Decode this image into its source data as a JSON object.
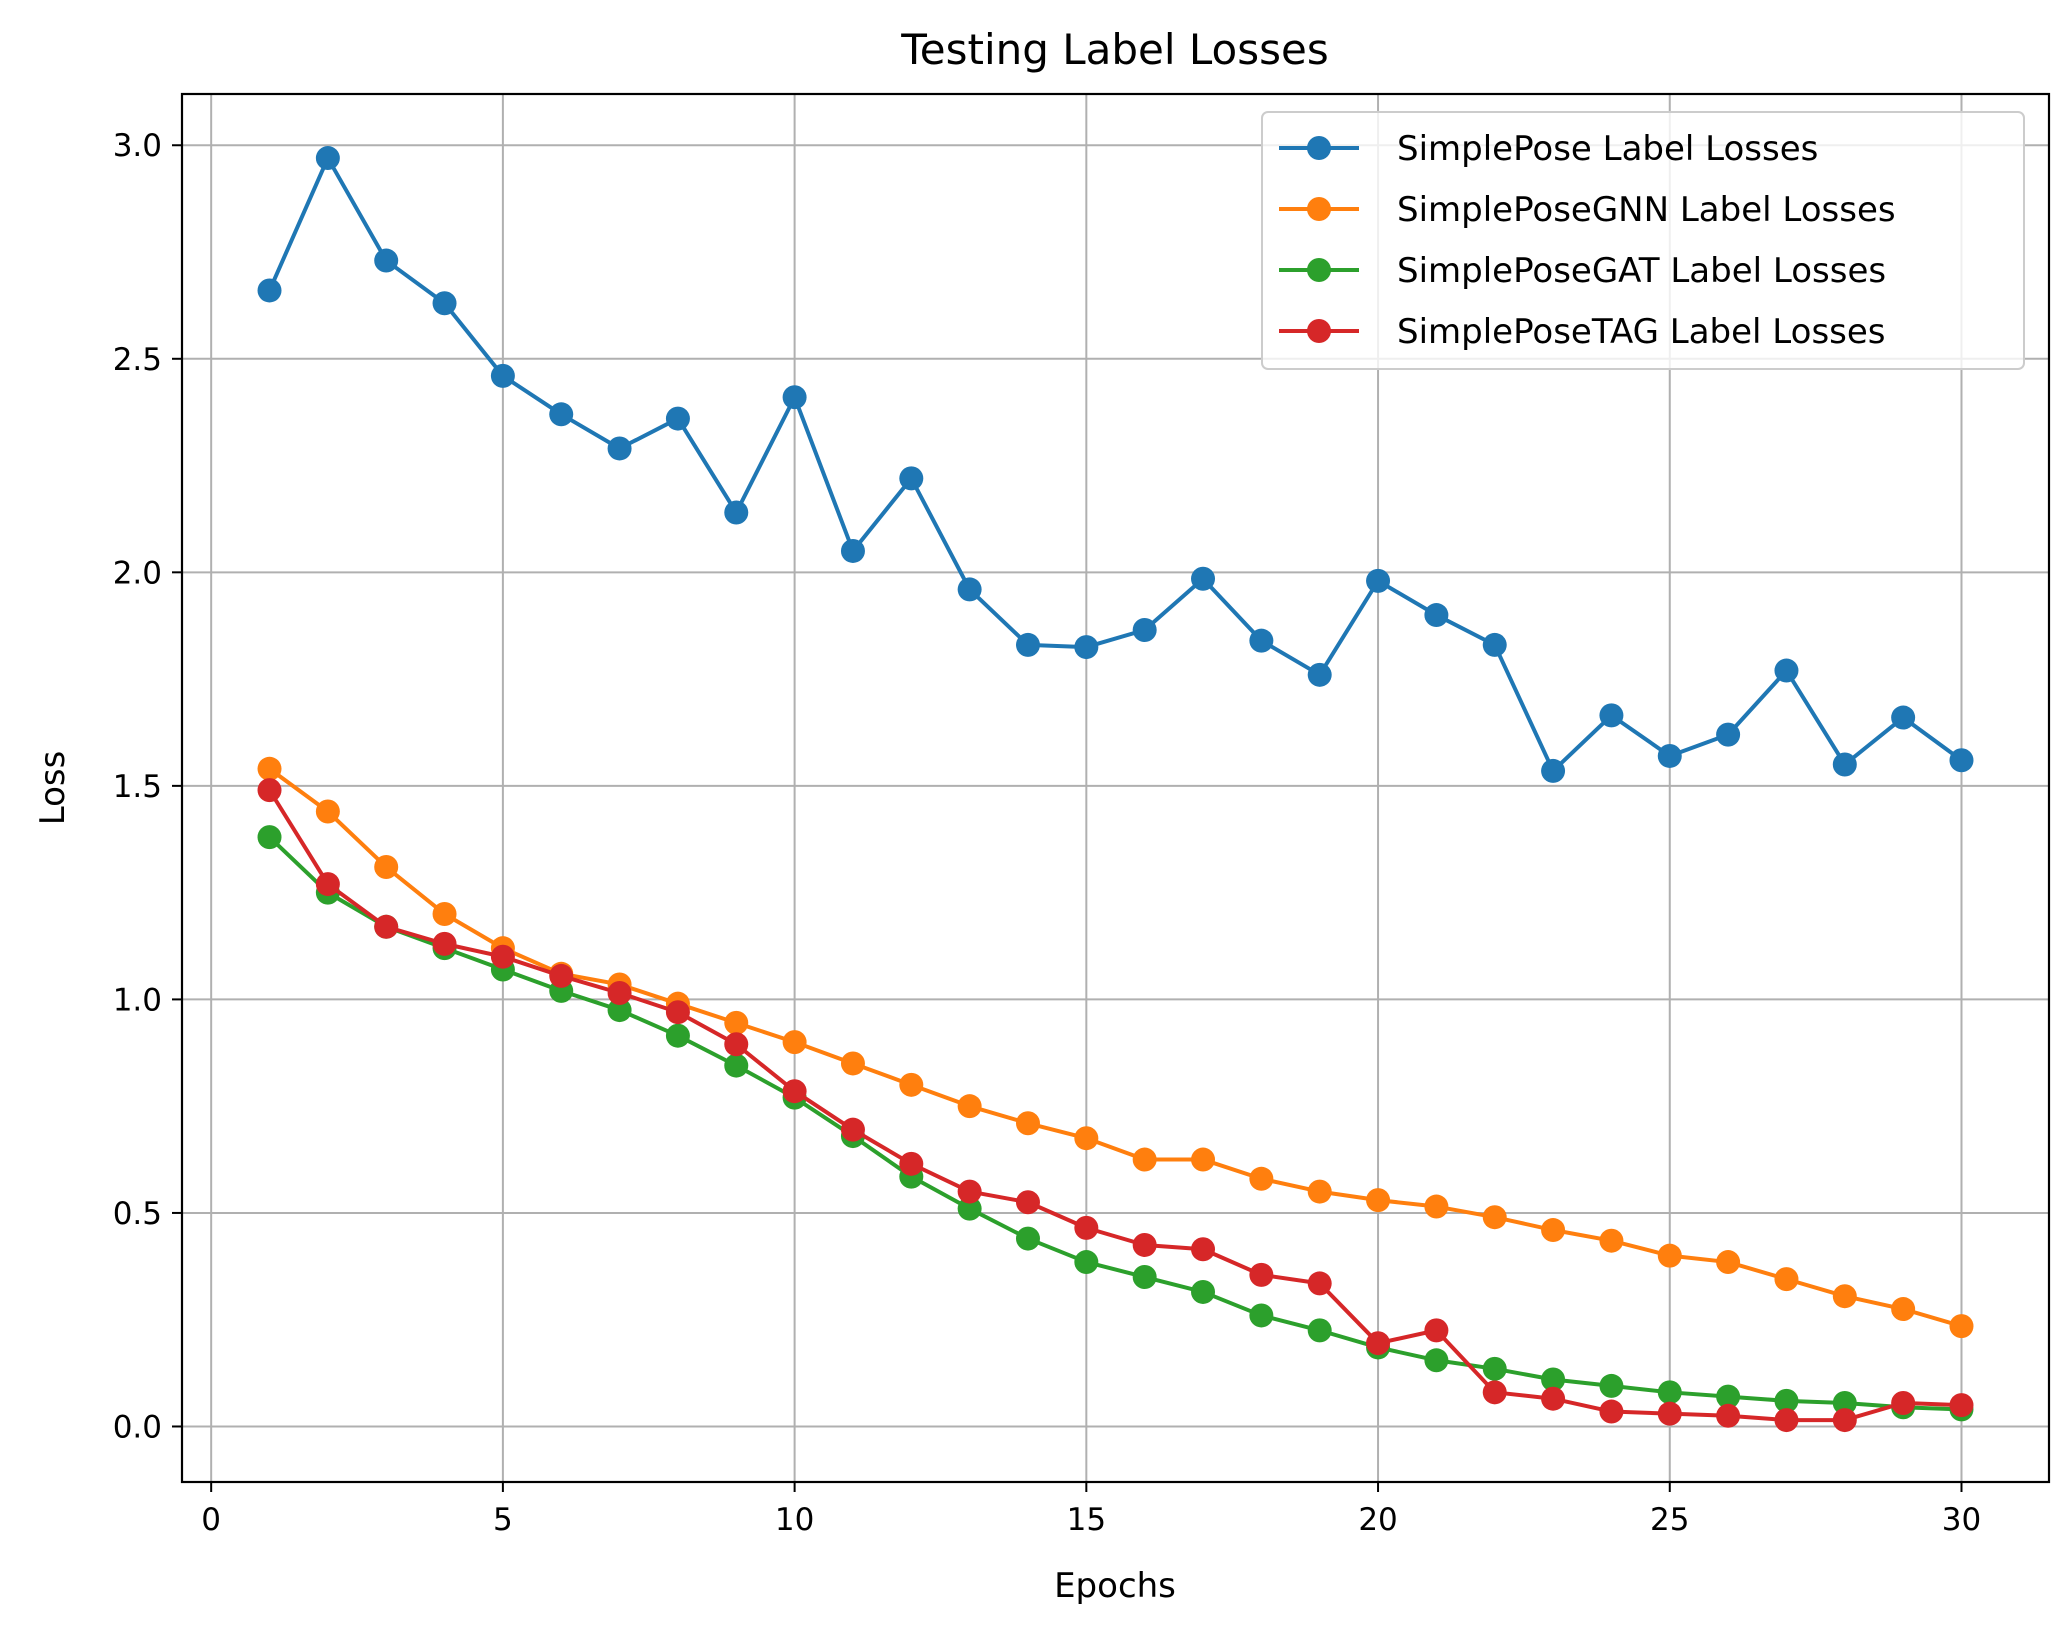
{
  "chart_data": {
    "type": "line",
    "title": "Testing Label Losses",
    "xlabel": "Epochs",
    "ylabel": "Loss",
    "xlim": [
      -0.5,
      31.5
    ],
    "ylim": [
      -0.13,
      3.12
    ],
    "xticks": [
      0,
      5,
      10,
      15,
      20,
      25,
      30
    ],
    "xtick_labels": [
      "0",
      "5",
      "10",
      "15",
      "20",
      "25",
      "30"
    ],
    "yticks": [
      0.0,
      0.5,
      1.0,
      1.5,
      2.0,
      2.5,
      3.0
    ],
    "ytick_labels": [
      "0.0",
      "0.5",
      "1.0",
      "1.5",
      "2.0",
      "2.5",
      "3.0"
    ],
    "grid": true,
    "legend_position": "top-right",
    "x": [
      1,
      2,
      3,
      4,
      5,
      6,
      7,
      8,
      9,
      10,
      11,
      12,
      13,
      14,
      15,
      16,
      17,
      18,
      19,
      20,
      21,
      22,
      23,
      24,
      25,
      26,
      27,
      28,
      29,
      30
    ],
    "series": [
      {
        "name": "SimplePose Label Losses",
        "color": "#1f77b4",
        "values": [
          2.66,
          2.97,
          2.73,
          2.63,
          2.46,
          2.37,
          2.29,
          2.36,
          2.14,
          2.41,
          2.05,
          2.22,
          1.96,
          1.83,
          1.825,
          1.865,
          1.985,
          1.84,
          1.76,
          1.98,
          1.9,
          1.83,
          1.535,
          1.665,
          1.57,
          1.62,
          1.77,
          1.55,
          1.66,
          1.56
        ]
      },
      {
        "name": "SimplePoseGNN Label Losses",
        "color": "#ff7f0e",
        "values": [
          1.54,
          1.44,
          1.31,
          1.2,
          1.12,
          1.06,
          1.035,
          0.99,
          0.945,
          0.9,
          0.85,
          0.8,
          0.75,
          0.71,
          0.675,
          0.625,
          0.625,
          0.58,
          0.55,
          0.53,
          0.515,
          0.49,
          0.46,
          0.435,
          0.4,
          0.385,
          0.345,
          0.305,
          0.275,
          0.235
        ]
      },
      {
        "name": "SimplePoseGAT Label Losses",
        "color": "#2ca02c",
        "values": [
          1.38,
          1.25,
          1.17,
          1.12,
          1.07,
          1.02,
          0.975,
          0.915,
          0.845,
          0.77,
          0.68,
          0.585,
          0.51,
          0.44,
          0.385,
          0.35,
          0.315,
          0.26,
          0.225,
          0.185,
          0.155,
          0.135,
          0.11,
          0.095,
          0.08,
          0.07,
          0.06,
          0.055,
          0.045,
          0.04
        ]
      },
      {
        "name": "SimplePoseTAG Label Losses",
        "color": "#d62728",
        "values": [
          1.49,
          1.27,
          1.17,
          1.13,
          1.1,
          1.055,
          1.015,
          0.97,
          0.895,
          0.785,
          0.695,
          0.615,
          0.55,
          0.525,
          0.465,
          0.425,
          0.415,
          0.355,
          0.335,
          0.195,
          0.225,
          0.08,
          0.065,
          0.035,
          0.03,
          0.025,
          0.015,
          0.015,
          0.055,
          0.05
        ]
      }
    ]
  }
}
